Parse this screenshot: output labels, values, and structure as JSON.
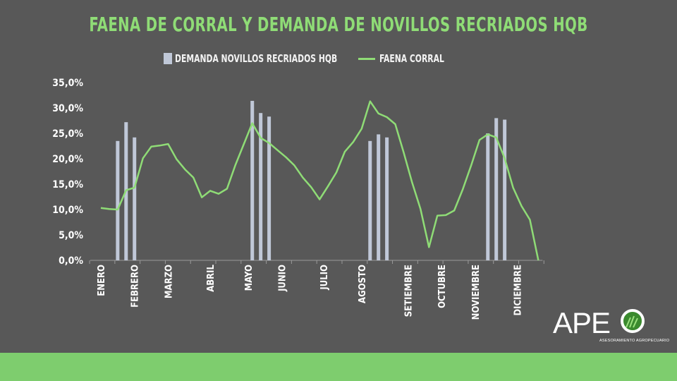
{
  "title": "FAENA DE CORRAL Y DEMANDA DE NOVILLOS RECRIADOS HQB",
  "legend": {
    "bars_label": "DEMANDA NOVILLOS RECRIADOS HQB",
    "line_label": "FAENA CORRAL"
  },
  "logo": {
    "text": "APE",
    "subtitle": "ASESORAMIENTO AGROPECUARIO"
  },
  "colors": {
    "background": "#585858",
    "title": "#8fdc76",
    "bars": "#c0c8d8",
    "line": "#8fdc76",
    "footer": "#7ecd6e"
  },
  "chart_data": {
    "type": "bar",
    "title": "FAENA DE CORRAL Y DEMANDA DE NOVILLOS RECRIADOS HQB",
    "y_ticks": [
      "0,0%",
      "5,0%",
      "10,0%",
      "15,0%",
      "20,0%",
      "25,0%",
      "30,0%",
      "35,0%"
    ],
    "ylim": [
      0,
      35
    ],
    "grid": false,
    "legend_position": "top",
    "months": [
      {
        "label": "ENERO",
        "week": 0
      },
      {
        "label": "FEBRERO",
        "week": 4
      },
      {
        "label": "MARZO",
        "week": 8
      },
      {
        "label": "ABRIL",
        "week": 13
      },
      {
        "label": "MAYO",
        "week": 17.5
      },
      {
        "label": "JUNIO",
        "week": 21.5
      },
      {
        "label": "JULIO",
        "week": 26.5
      },
      {
        "label": "AGOSTO",
        "week": 31
      },
      {
        "label": "SETIEMBRE",
        "week": 36.5
      },
      {
        "label": "OCTUBRE",
        "week": 40.5
      },
      {
        "label": "NOVIEMBRE",
        "week": 44.5
      },
      {
        "label": "DICIEMBRE",
        "week": 49.5
      }
    ],
    "series": [
      {
        "name": "DEMANDA NOVILLOS RECRIADOS HQB",
        "type": "bar",
        "points": [
          {
            "week": 2,
            "value": 23.5
          },
          {
            "week": 3,
            "value": 27.2
          },
          {
            "week": 4,
            "value": 24.2
          },
          {
            "week": 18,
            "value": 31.4
          },
          {
            "week": 19,
            "value": 29.0
          },
          {
            "week": 20,
            "value": 28.3
          },
          {
            "week": 32,
            "value": 23.5
          },
          {
            "week": 33,
            "value": 24.8
          },
          {
            "week": 34,
            "value": 24.2
          },
          {
            "week": 46,
            "value": 25.0
          },
          {
            "week": 47,
            "value": 28.0
          },
          {
            "week": 48,
            "value": 27.7
          }
        ]
      },
      {
        "name": "FAENA CORRAL",
        "type": "line",
        "values": [
          10.3,
          10.1,
          10.0,
          13.8,
          14.3,
          20.1,
          22.4,
          22.6,
          22.9,
          19.9,
          17.9,
          16.3,
          12.4,
          13.7,
          13.1,
          14.1,
          18.8,
          22.9,
          27.0,
          24.1,
          23.1,
          21.7,
          20.3,
          18.7,
          16.3,
          14.4,
          12.0,
          14.6,
          17.3,
          21.4,
          23.3,
          25.9,
          31.3,
          28.9,
          28.2,
          26.8,
          21.2,
          15.3,
          10.1,
          2.6,
          8.8,
          8.9,
          9.8,
          13.9,
          18.6,
          23.7,
          24.8,
          24.2,
          20.1,
          14.3,
          10.7,
          8.0,
          0.0
        ]
      }
    ]
  }
}
